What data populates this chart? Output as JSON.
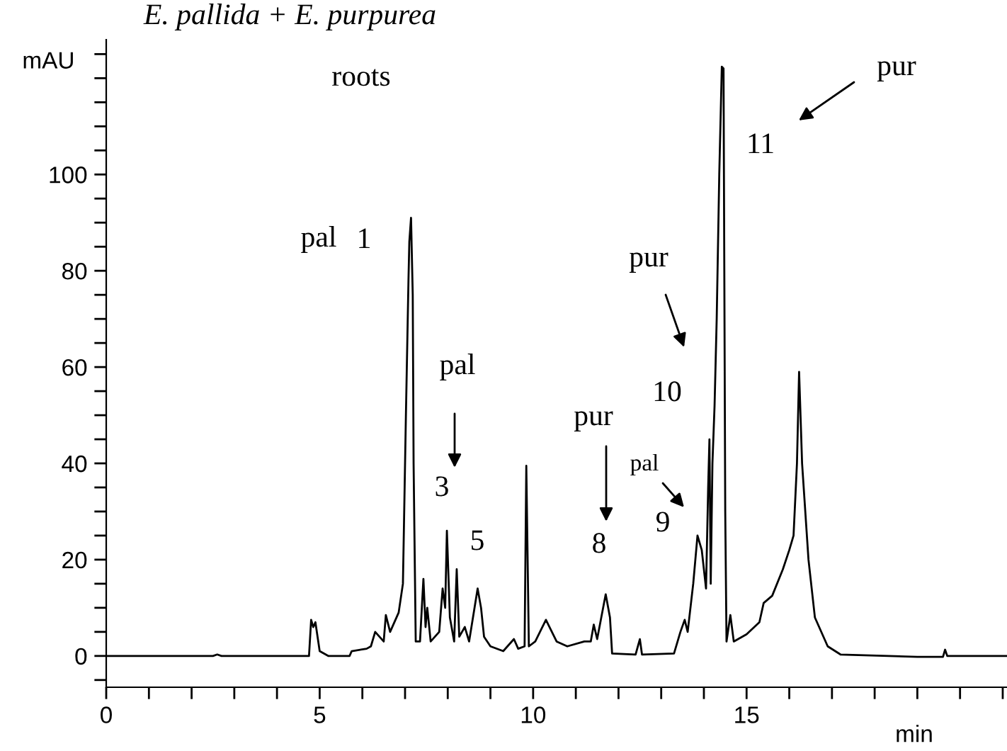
{
  "chart_data": {
    "type": "line",
    "title": "E. pallida + E. purpurea",
    "subtitle": "roots",
    "xlabel": "min",
    "ylabel": "mAU",
    "xlim": [
      0,
      21.1
    ],
    "ylim": [
      -6.5,
      128
    ],
    "xticks": [
      0,
      {
        "value": 1,
        "label": null
      },
      {
        "value": 2,
        "label": null
      },
      {
        "value": 3,
        "label": null
      },
      {
        "value": 4,
        "label": null
      },
      5,
      {
        "value": 6,
        "label": null
      },
      {
        "value": 7,
        "label": null
      },
      {
        "value": 8,
        "label": null
      },
      {
        "value": 9,
        "label": null
      },
      10,
      {
        "value": 11,
        "label": null
      },
      {
        "value": 12,
        "label": null
      },
      {
        "value": 13,
        "label": null
      },
      {
        "value": 14,
        "label": null
      },
      15,
      {
        "value": 16,
        "label": null
      },
      {
        "value": 17,
        "label": null
      },
      {
        "value": 18,
        "label": null
      },
      {
        "value": 19,
        "label": null
      },
      {
        "value": 20,
        "label": null
      },
      {
        "value": 21,
        "label": null
      }
    ],
    "yticks": [
      {
        "value": -5,
        "label": null
      },
      0,
      {
        "value": 5,
        "label": null
      },
      {
        "value": 10,
        "label": null
      },
      {
        "value": 15,
        "label": null
      },
      20,
      {
        "value": 25,
        "label": null
      },
      {
        "value": 30,
        "label": null
      },
      {
        "value": 35,
        "label": null
      },
      40,
      {
        "value": 45,
        "label": null
      },
      {
        "value": 50,
        "label": null
      },
      {
        "value": 55,
        "label": null
      },
      60,
      {
        "value": 65,
        "label": null
      },
      {
        "value": 70,
        "label": null
      },
      {
        "value": 75,
        "label": null
      },
      80,
      {
        "value": 85,
        "label": null
      },
      {
        "value": 90,
        "label": null
      },
      {
        "value": 95,
        "label": null
      },
      100,
      {
        "value": 105,
        "label": null
      },
      {
        "value": 110,
        "label": null
      },
      {
        "value": 115,
        "label": null
      },
      {
        "value": 120,
        "label": null
      },
      {
        "value": 125,
        "label": null
      }
    ],
    "grid": false,
    "series": [
      {
        "color": "#000000",
        "x": [
          0,
          2.5,
          2.6,
          2.7,
          4.75,
          4.8,
          4.85,
          4.9,
          5.0,
          5.2,
          5.7,
          5.75,
          6.1,
          6.2,
          6.3,
          6.4,
          6.5,
          6.55,
          6.65,
          6.85,
          6.95,
          7.02,
          7.08,
          7.1,
          7.14,
          7.18,
          7.2,
          7.25,
          7.35,
          7.43,
          7.48,
          7.52,
          7.6,
          7.8,
          7.88,
          7.94,
          7.98,
          8.05,
          8.15,
          8.21,
          8.27,
          8.4,
          8.5,
          8.7,
          8.78,
          8.85,
          9.0,
          9.3,
          9.55,
          9.65,
          9.8,
          9.84,
          9.9,
          10.05,
          10.3,
          10.55,
          10.8,
          11.2,
          11.35,
          11.42,
          11.5,
          11.7,
          11.8,
          11.85,
          12.4,
          12.5,
          12.55,
          13.3,
          13.45,
          13.55,
          13.62,
          13.75,
          13.85,
          13.95,
          14.05,
          14.1,
          14.13,
          14.16,
          14.2,
          14.25,
          14.3,
          14.36,
          14.42,
          14.46,
          14.5,
          14.53,
          14.62,
          14.7,
          15.0,
          15.3,
          15.4,
          15.6,
          15.85,
          16.0,
          16.1,
          16.18,
          16.23,
          16.3,
          16.45,
          16.6,
          16.9,
          17.2,
          19.0,
          19.6,
          19.65,
          19.7,
          21.1
        ],
        "values": [
          0,
          0,
          0.3,
          0,
          0,
          7.5,
          6,
          7,
          1,
          0,
          0,
          1,
          1.5,
          2,
          5,
          4,
          3,
          8.5,
          5,
          9,
          15,
          50,
          78,
          86,
          91,
          75,
          40,
          3,
          3,
          16,
          6,
          10,
          3,
          5,
          14,
          10,
          26,
          8,
          3,
          18,
          4,
          6,
          3,
          14,
          10,
          4,
          2,
          1,
          3.5,
          1.5,
          2,
          39.5,
          2,
          3,
          7.5,
          3,
          2,
          3,
          3,
          6.5,
          3.5,
          12.8,
          8,
          0.5,
          0.3,
          3.5,
          0.3,
          0.5,
          5,
          7.5,
          5,
          15,
          25,
          22,
          14,
          35,
          45,
          15,
          40,
          52,
          70,
          100,
          122.4,
          122,
          30,
          3,
          8.5,
          3,
          4.5,
          7,
          11,
          12.5,
          18,
          22,
          25,
          40,
          59,
          40,
          20,
          8,
          2,
          0.3,
          -0.2,
          -0.2,
          1.3,
          0,
          0
        ]
      }
    ],
    "annotations": [
      "pal",
      "1",
      "pal",
      "3",
      "5",
      "pur",
      "8",
      "pal",
      "9",
      "pur",
      "10",
      "pur",
      "11"
    ]
  }
}
